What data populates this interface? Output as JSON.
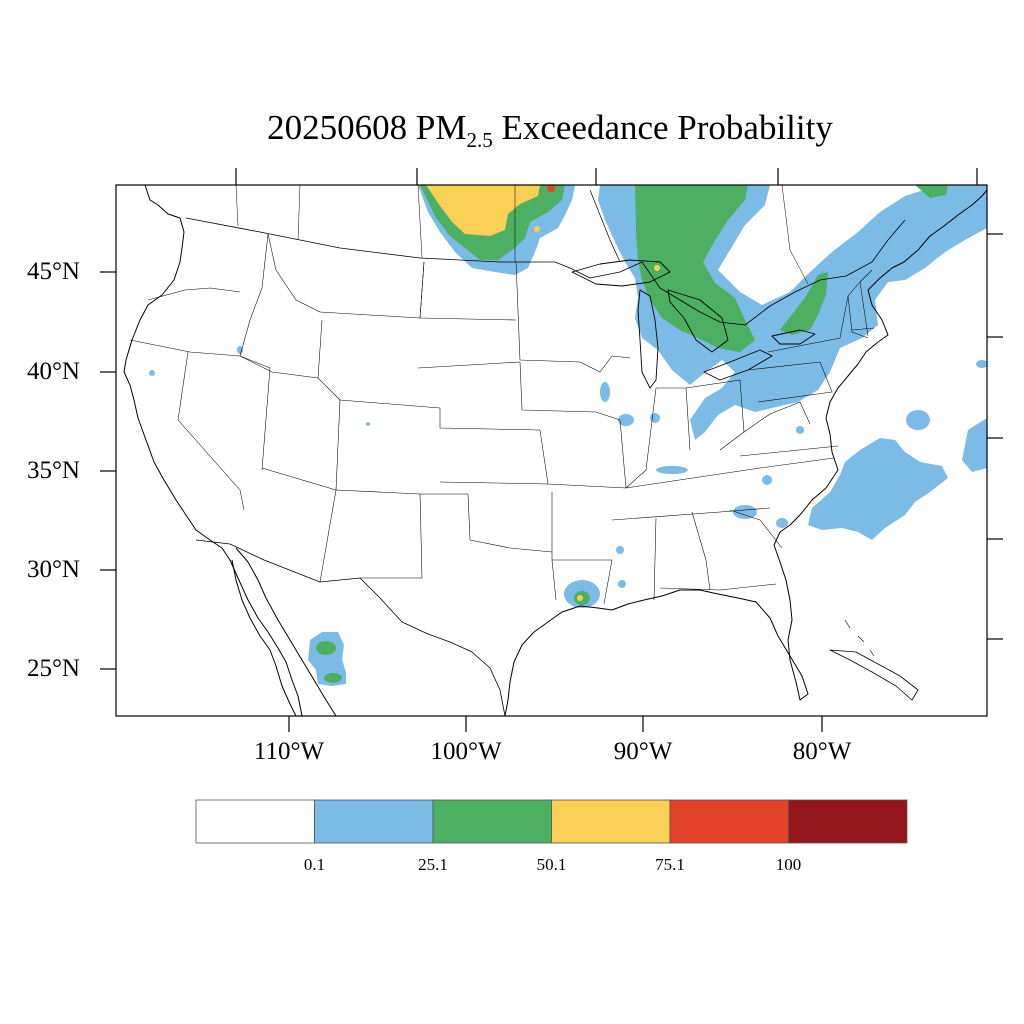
{
  "title": {
    "prefix": "20250608 PM",
    "subscript": "2.5",
    "suffix": " Exceedance Probability"
  },
  "axes": {
    "lat_labels": [
      "45°N",
      "40°N",
      "35°N",
      "30°N",
      "25°N"
    ],
    "lon_labels": [
      "110°W",
      "100°W",
      "90°W",
      "80°W"
    ]
  },
  "legend": {
    "colors": [
      "#ffffff",
      "#7cbbe6",
      "#4caf62",
      "#f9cf55",
      "#e34128",
      "#93161b"
    ],
    "labels": [
      "0.1",
      "25.1",
      "50.1",
      "75.1",
      "100"
    ]
  },
  "map": {
    "variable": "PM2.5 exceedance probability (%)",
    "extent": {
      "lon": [
        -119,
        -70
      ],
      "lat": [
        23,
        49.5
      ]
    }
  }
}
